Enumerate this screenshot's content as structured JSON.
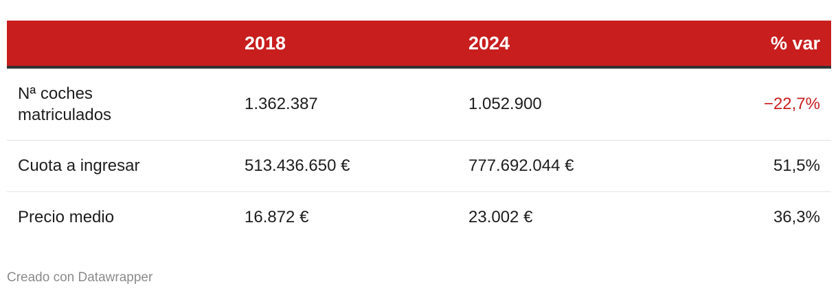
{
  "chart_data": {
    "type": "table",
    "columns": [
      "",
      "2018",
      "2024",
      "% var"
    ],
    "rows": [
      {
        "label": "Nª coches matriculados",
        "label_lines": [
          "Nª coches",
          "matriculados"
        ],
        "v2018": "1.362.387",
        "v2024": "1.052.900",
        "var": "−22,7%",
        "var_negative": true
      },
      {
        "label": "Cuota a ingresar",
        "label_lines": [
          "Cuota a ingresar"
        ],
        "v2018": "513.436.650 €",
        "v2024": "777.692.044 €",
        "var": "51,5%",
        "var_negative": false
      },
      {
        "label": "Precio medio",
        "label_lines": [
          "Precio medio"
        ],
        "v2018": "16.872 €",
        "v2024": "23.002 €",
        "var": "36,3%",
        "var_negative": false
      }
    ],
    "colors": {
      "header_bg": "#c81e1e",
      "header_text": "#ffffff",
      "negative_text": "#c81e1e"
    }
  },
  "footer": {
    "credit": "Creado con Datawrapper"
  }
}
